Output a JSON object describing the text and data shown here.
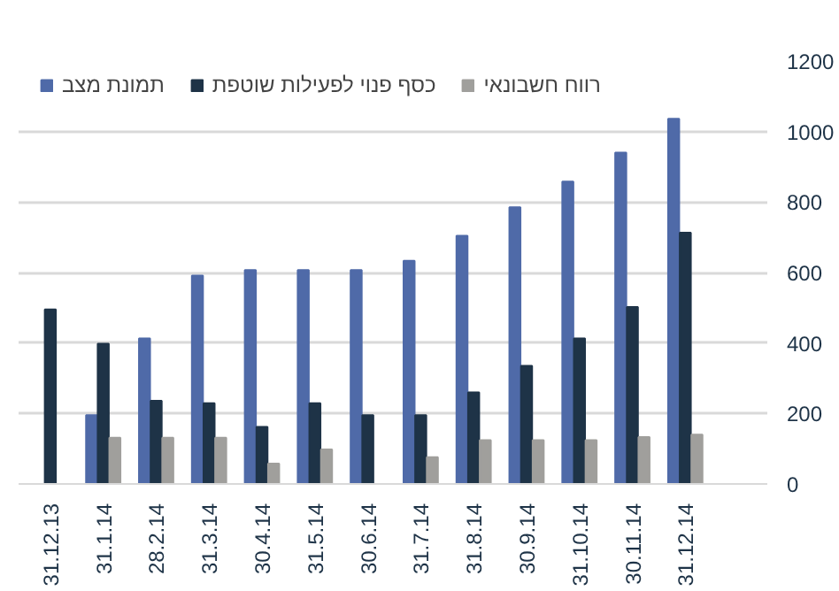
{
  "chart_data": {
    "type": "bar",
    "categories": [
      "31.12.13",
      "31.1.14",
      "28.2.14",
      "31.3.14",
      "30.4.14",
      "31.5.14",
      "30.6.14",
      "31.7.14",
      "31.8.14",
      "30.9.14",
      "31.10.14",
      "30.11.14",
      "31.12.14"
    ],
    "series": [
      {
        "name": "תמונת מצב",
        "color": "#4f6aa8",
        "values": [
          null,
          195,
          413,
          591,
          607,
          607,
          607,
          633,
          704,
          785,
          858,
          940,
          1036
        ]
      },
      {
        "name": "כסף פנוי לפעילות שוטפת",
        "color": "#1e3347",
        "values": [
          495,
          398,
          236,
          229,
          162,
          229,
          195,
          195,
          260,
          335,
          413,
          502,
          713
        ]
      },
      {
        "name": "רווח חשבונאי",
        "color": "#a09f9c",
        "values": [
          null,
          131,
          131,
          131,
          58,
          98,
          null,
          76,
          124,
          124,
          124,
          133,
          140
        ]
      }
    ],
    "ylim": [
      0,
      1200
    ],
    "yticks": [
      0,
      200,
      400,
      600,
      800,
      1000,
      1200
    ],
    "grid": "y",
    "legend": "top"
  }
}
